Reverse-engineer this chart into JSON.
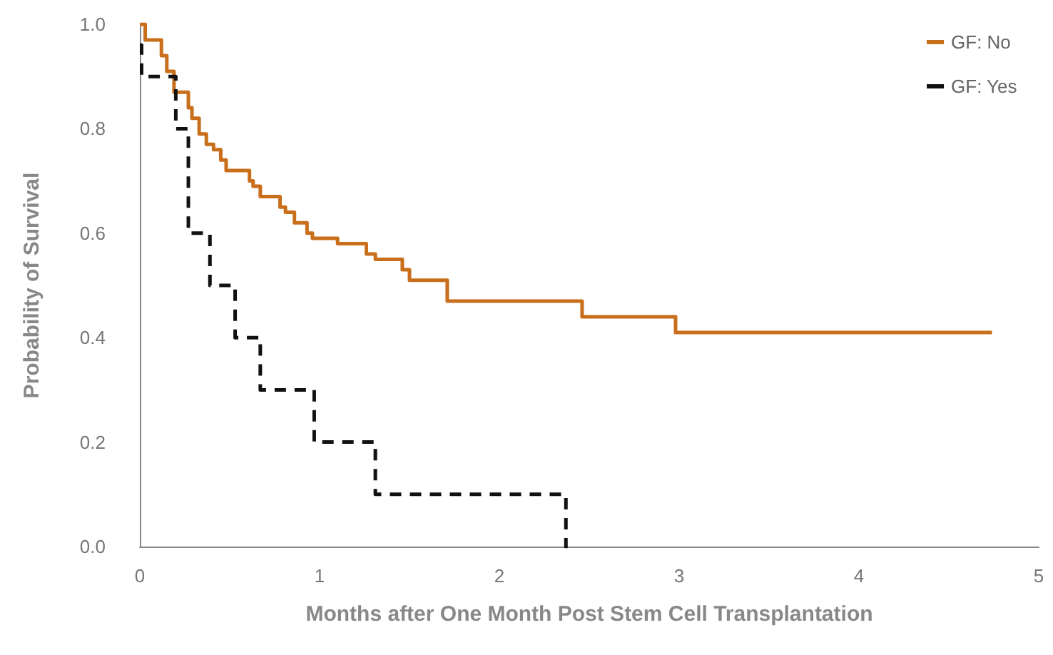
{
  "chart_data": {
    "type": "step",
    "xlabel": "Months after One Month Post Stem Cell Transplantation",
    "ylabel": "Probability of Survival",
    "xlim": [
      0,
      5
    ],
    "xticks": [
      0,
      1,
      2,
      3,
      4,
      5
    ],
    "ylim": [
      0,
      1
    ],
    "yticks": [
      {
        "value": 0,
        "label": "0.0"
      },
      {
        "value": 0.2,
        "label": "0.2"
      },
      {
        "value": 0.4,
        "label": "0.4"
      },
      {
        "value": 0.6,
        "label": "0.6"
      },
      {
        "value": 0.8,
        "label": "0.8"
      },
      {
        "value": 1,
        "label": "1.0"
      }
    ],
    "grid": false,
    "legend": "top right",
    "marker": "none",
    "series": [
      {
        "name": "GF: No",
        "color": "#c96f1c",
        "line_style": "solid",
        "x": [
          0,
          0.03,
          0.12,
          0.15,
          0.19,
          0.27,
          0.29,
          0.33,
          0.37,
          0.41,
          0.45,
          0.48,
          0.61,
          0.63,
          0.67,
          0.78,
          0.81,
          0.86,
          0.93,
          0.96,
          1.1,
          1.26,
          1.31,
          1.46,
          1.5,
          1.71,
          2.46,
          2.98,
          4.74
        ],
        "values": [
          1.0,
          0.97,
          0.94,
          0.91,
          0.87,
          0.84,
          0.82,
          0.79,
          0.77,
          0.76,
          0.74,
          0.72,
          0.7,
          0.69,
          0.67,
          0.65,
          0.64,
          0.62,
          0.6,
          0.59,
          0.58,
          0.56,
          0.55,
          0.53,
          0.51,
          0.47,
          0.44,
          0.41,
          0.41
        ]
      },
      {
        "name": "GF: Yes",
        "color": "#111111",
        "line_style": "dashed",
        "x": [
          0,
          0.01,
          0.2,
          0.27,
          0.39,
          0.53,
          0.67,
          0.97,
          1.31,
          2.37,
          2.38
        ],
        "values": [
          0.96,
          0.9,
          0.8,
          0.6,
          0.5,
          0.4,
          0.3,
          0.2,
          0.1,
          0.0,
          0.0
        ]
      }
    ]
  }
}
